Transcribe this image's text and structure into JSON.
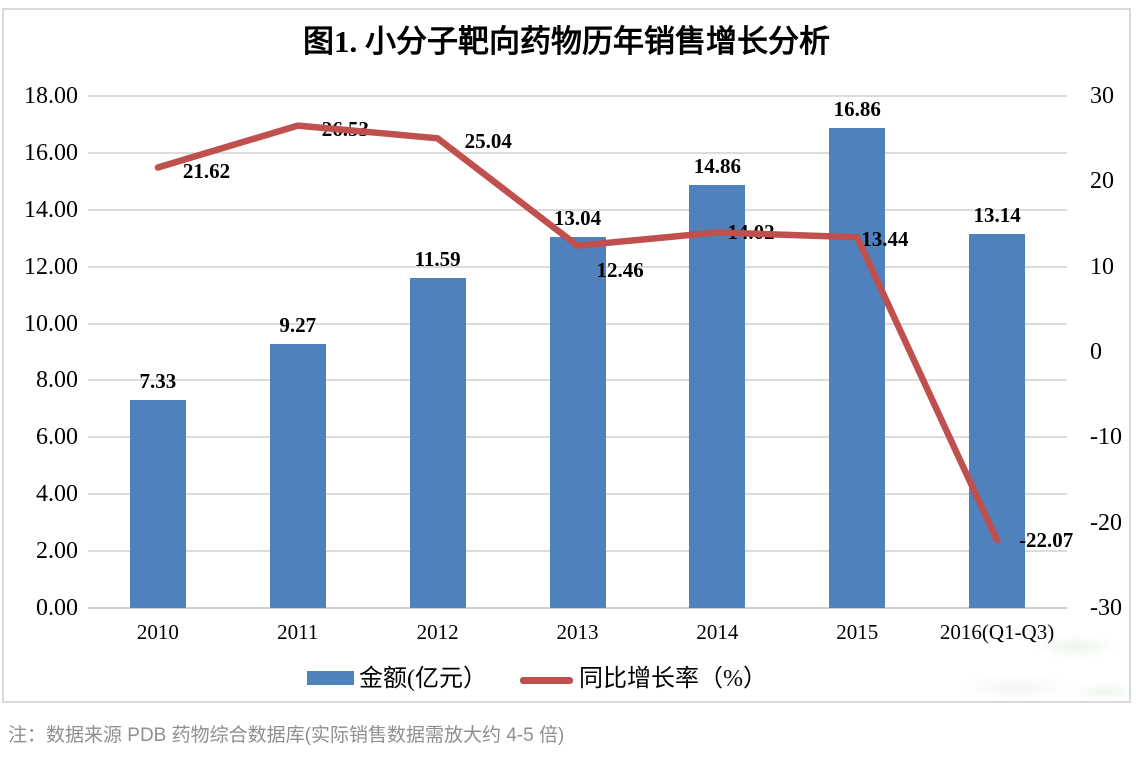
{
  "page": {
    "note": "注：数据来源 PDB 药物综合数据库(实际销售数据需放大约 4-5 倍)"
  },
  "chart_data": {
    "type": "bar",
    "subtype": "combo-bar-line-dual-axis",
    "title": "图1. 小分子靶向药物历年销售增长分析",
    "categories": [
      "2010",
      "2011",
      "2012",
      "2013",
      "2014",
      "2015",
      "2016(Q1-Q3)"
    ],
    "series": [
      {
        "name": "金额(亿元）",
        "type": "bar",
        "axis": "left",
        "color": "#4f81bd",
        "values": [
          7.33,
          9.27,
          11.59,
          13.04,
          14.86,
          16.86,
          13.14
        ]
      },
      {
        "name": "同比增长率（%）",
        "type": "line",
        "axis": "right",
        "color": "#c0504d",
        "values": [
          21.62,
          26.53,
          25.04,
          12.46,
          14.02,
          13.44,
          -22.07
        ]
      }
    ],
    "left_axis": {
      "min": 0,
      "max": 18,
      "step": 2,
      "tick_decimals": 2
    },
    "right_axis": {
      "min": -30,
      "max": 30,
      "step": 10,
      "tick_decimals": 0
    },
    "grid": true,
    "data_labels": true,
    "legend_position": "bottom"
  }
}
